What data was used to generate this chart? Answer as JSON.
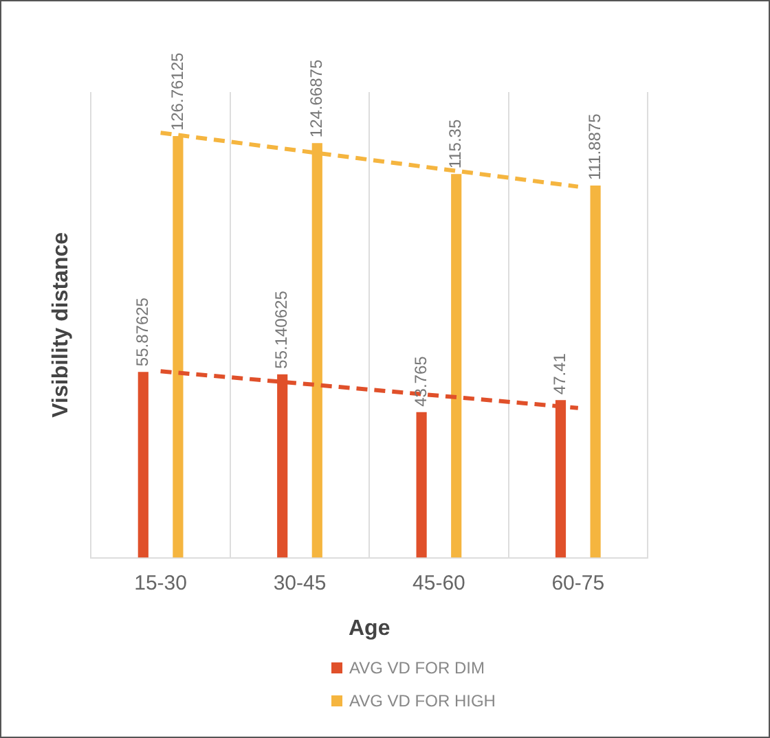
{
  "chart_data": {
    "type": "bar",
    "xlabel": "Age",
    "ylabel": "Visibility distance",
    "categories": [
      "15-30",
      "30-45",
      "45-60",
      "60-75"
    ],
    "ylim": [
      0,
      140
    ],
    "grid": "x",
    "legend": "bottom",
    "series": [
      {
        "name": "AVG VD FOR DIM",
        "color": "#e0502a",
        "values": [
          55.87625,
          55.140625,
          43.765,
          47.41
        ],
        "value_labels": [
          "55.87625",
          "55.140625",
          "43.765",
          "47.41"
        ]
      },
      {
        "name": "AVG VD FOR HIGH",
        "color": "#f5b53f",
        "values": [
          126.76125,
          124.66875,
          115.35,
          111.8875
        ],
        "value_labels": [
          "126.76125",
          "124.66875",
          "115.35",
          "111.8875"
        ]
      },
      {
        "type": "line",
        "color": "#e0502a",
        "line_style": "dashed",
        "values": [
          56.06,
          52.39,
          48.71,
          45.03
        ]
      },
      {
        "type": "line",
        "color": "#f5b53f",
        "line_style": "dashed",
        "values": [
          127.76,
          122.36,
          116.97,
          111.57
        ]
      }
    ]
  }
}
